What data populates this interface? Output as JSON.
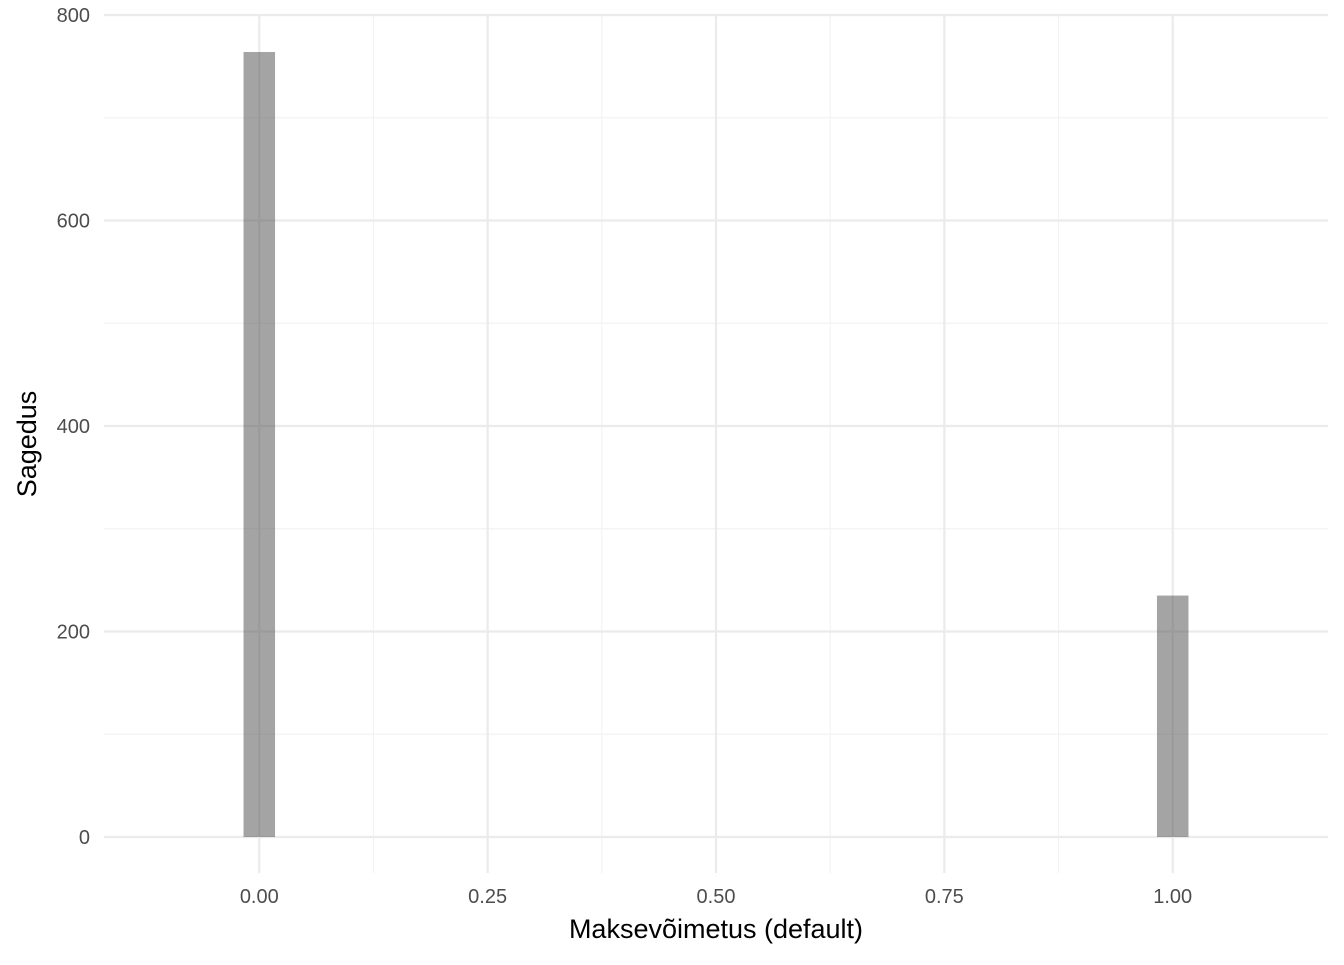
{
  "chart_data": {
    "type": "bar",
    "title": "",
    "xlabel": "Maksevõimetus (default)",
    "ylabel": "Sagedus",
    "x_ticks": [
      "0.00",
      "0.25",
      "0.50",
      "0.75",
      "1.00"
    ],
    "y_ticks": [
      "0",
      "200",
      "400",
      "600",
      "800"
    ],
    "xlim": [
      -0.17,
      1.17
    ],
    "ylim": [
      -35,
      800
    ],
    "bins": [
      {
        "center": 0.0,
        "width": 0.0345,
        "value": 764
      },
      {
        "center": 1.0,
        "width": 0.0345,
        "value": 235
      }
    ],
    "grid": true,
    "legend": "none",
    "colors": {
      "bar": "#595959",
      "bar_opacity": 0.55,
      "grid_major": "#ebebeb",
      "grid_minor": "#f2f2f2",
      "tick_text": "#4d4d4d",
      "axis_title": "#000000"
    }
  }
}
